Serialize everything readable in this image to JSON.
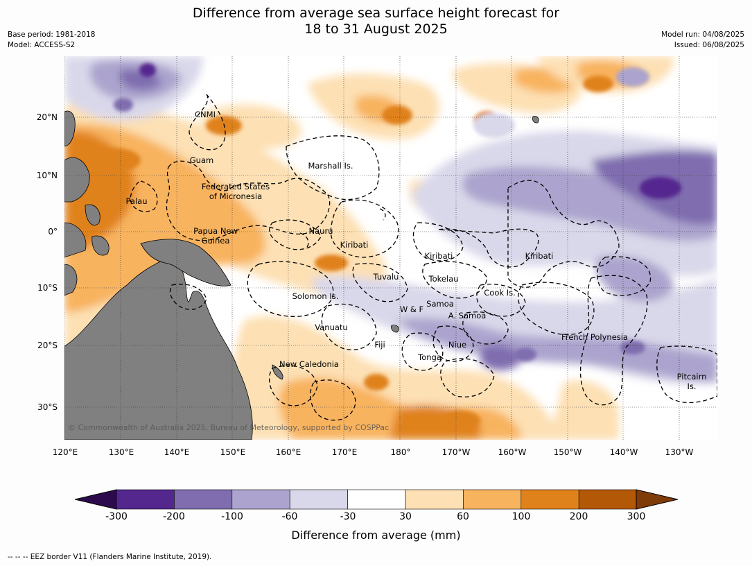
{
  "title_line1": "Difference from average sea surface height forecast for",
  "title_line2": "18 to 31 August 2025",
  "meta_left": [
    "Base period: 1981-2018",
    "Model: ACCESS-S2"
  ],
  "meta_right": [
    "Model run: 04/08/2025",
    "Issued: 06/08/2025"
  ],
  "lat_ticks": [
    "20°N",
    "10°N",
    "0°",
    "10°S",
    "20°S",
    "30°S"
  ],
  "lon_ticks": [
    "120°E",
    "130°E",
    "140°E",
    "150°E",
    "160°E",
    "170°E",
    "180°",
    "170°W",
    "160°W",
    "150°W",
    "140°W",
    "130°W"
  ],
  "labels": {
    "cnmi": "CNMI",
    "guam": "Guam",
    "marshall": "Marshall Is.",
    "fsm1": "Federated States",
    "fsm2": "of Micronesia",
    "palau": "Palau",
    "png1": "Papua New",
    "png2": "Guinea",
    "nauru": "Nauru",
    "kiribati_w": "Kiribati",
    "kiribati_c": "Kiribati",
    "kiribati_e": "Kiribati",
    "tuvalu": "Tuvalu",
    "tokelau": "Tokelau",
    "cook": "Cook Is.",
    "solomon": "Solomon Is.",
    "wf": "W & F",
    "samoa": "Samoa",
    "asamoa": "A. Samoa",
    "vanuatu": "Vanuatu",
    "fiji": "Fiji",
    "niue": "Niue",
    "frpoly": "French Polynesia",
    "tonga": "Tonga",
    "newcal": "New Caledonia",
    "pitcairn1": "Pitcairn",
    "pitcairn2": "Is."
  },
  "copyright": "© Commonwealth of Australia 2025, Bureau of Meteorology, supported by COSPPac",
  "colorbar": {
    "ticks": [
      "-300",
      "-200",
      "-100",
      "-60",
      "-30",
      "30",
      "60",
      "100",
      "200",
      "300"
    ],
    "colors": [
      "#2d0a4e",
      "#54278f",
      "#7f6daf",
      "#aca4ce",
      "#d9d8ea",
      "#ffffff",
      "#fde0b4",
      "#f8b35e",
      "#e0821b",
      "#b35806",
      "#7f3b08"
    ],
    "label": "Difference from average (mm)"
  },
  "footnote": "-- -- -- EEZ border V11 (Flanders Marine Institute, 2019)."
}
